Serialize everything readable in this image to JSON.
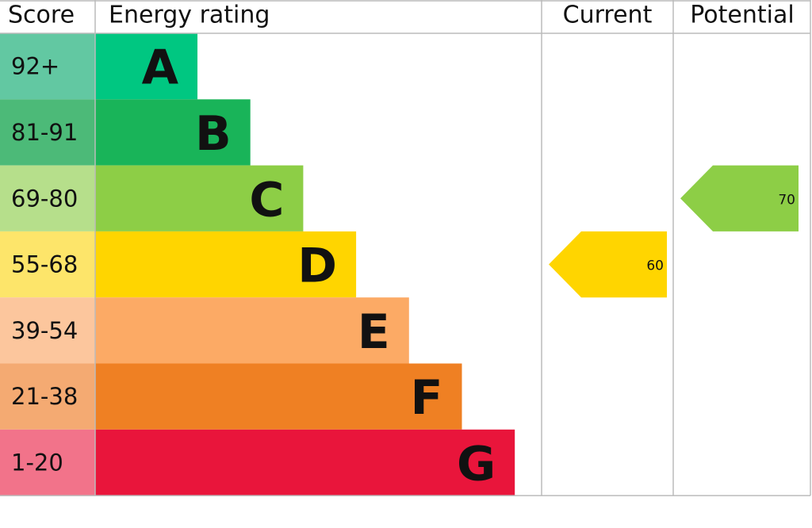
{
  "chart_data": {
    "type": "epc",
    "headers": {
      "score": "Score",
      "rating": "Energy rating",
      "current": "Current",
      "potential": "Potential"
    },
    "bands": [
      {
        "score": "92+",
        "letter": "A",
        "color": "#00c781",
        "score_color": "#62c8a2"
      },
      {
        "score": "81-91",
        "letter": "B",
        "color": "#19b459",
        "score_color": "#4cba78"
      },
      {
        "score": "69-80",
        "letter": "C",
        "color": "#8dce46",
        "score_color": "#b6df8b"
      },
      {
        "score": "55-68",
        "letter": "D",
        "color": "#ffd500",
        "score_color": "#fde56a"
      },
      {
        "score": "39-54",
        "letter": "E",
        "color": "#fcaa65",
        "score_color": "#fcc69d"
      },
      {
        "score": "21-38",
        "letter": "F",
        "color": "#ef8023",
        "score_color": "#f4aa72"
      },
      {
        "score": "1-20",
        "letter": "G",
        "color": "#e9153b",
        "score_color": "#f2738a"
      }
    ],
    "current": 60,
    "potential": 70
  }
}
